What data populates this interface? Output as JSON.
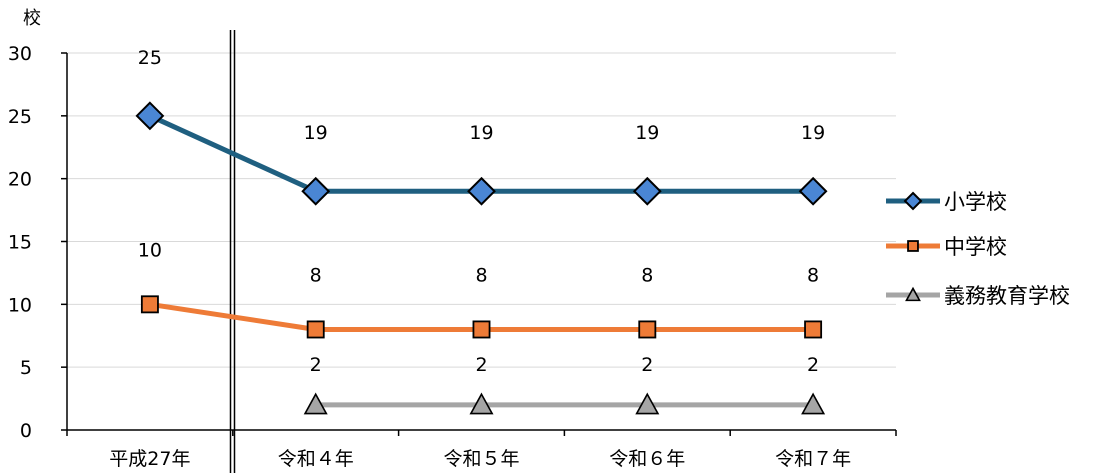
{
  "chart_data": {
    "type": "line",
    "unit_label": "校",
    "categories": [
      "平成27年",
      "令和４年",
      "令和５年",
      "令和６年",
      "令和７年"
    ],
    "ylim": [
      0,
      30
    ],
    "yticks": [
      0,
      5,
      10,
      15,
      20,
      25,
      30
    ],
    "grid": true,
    "legend_position": "right",
    "series": [
      {
        "name": "小学校",
        "values": [
          25,
          19,
          19,
          19,
          19
        ],
        "labels": [
          "25",
          "19",
          "19",
          "19",
          "19"
        ],
        "color": "#1f5f80",
        "marker": "diamond",
        "marker_color": "#4a86d4"
      },
      {
        "name": "中学校",
        "values": [
          10,
          8,
          8,
          8,
          8
        ],
        "labels": [
          "10",
          "8",
          "8",
          "8",
          "8"
        ],
        "color": "#ee7b37",
        "marker": "square",
        "marker_color": "#ee7b37"
      },
      {
        "name": "義務教育学校",
        "values": [
          null,
          2,
          2,
          2,
          2
        ],
        "labels": [
          null,
          "2",
          "2",
          "2",
          "2"
        ],
        "color": "#a5a5a5",
        "marker": "triangle",
        "marker_color": "#a5a5a5"
      }
    ]
  }
}
